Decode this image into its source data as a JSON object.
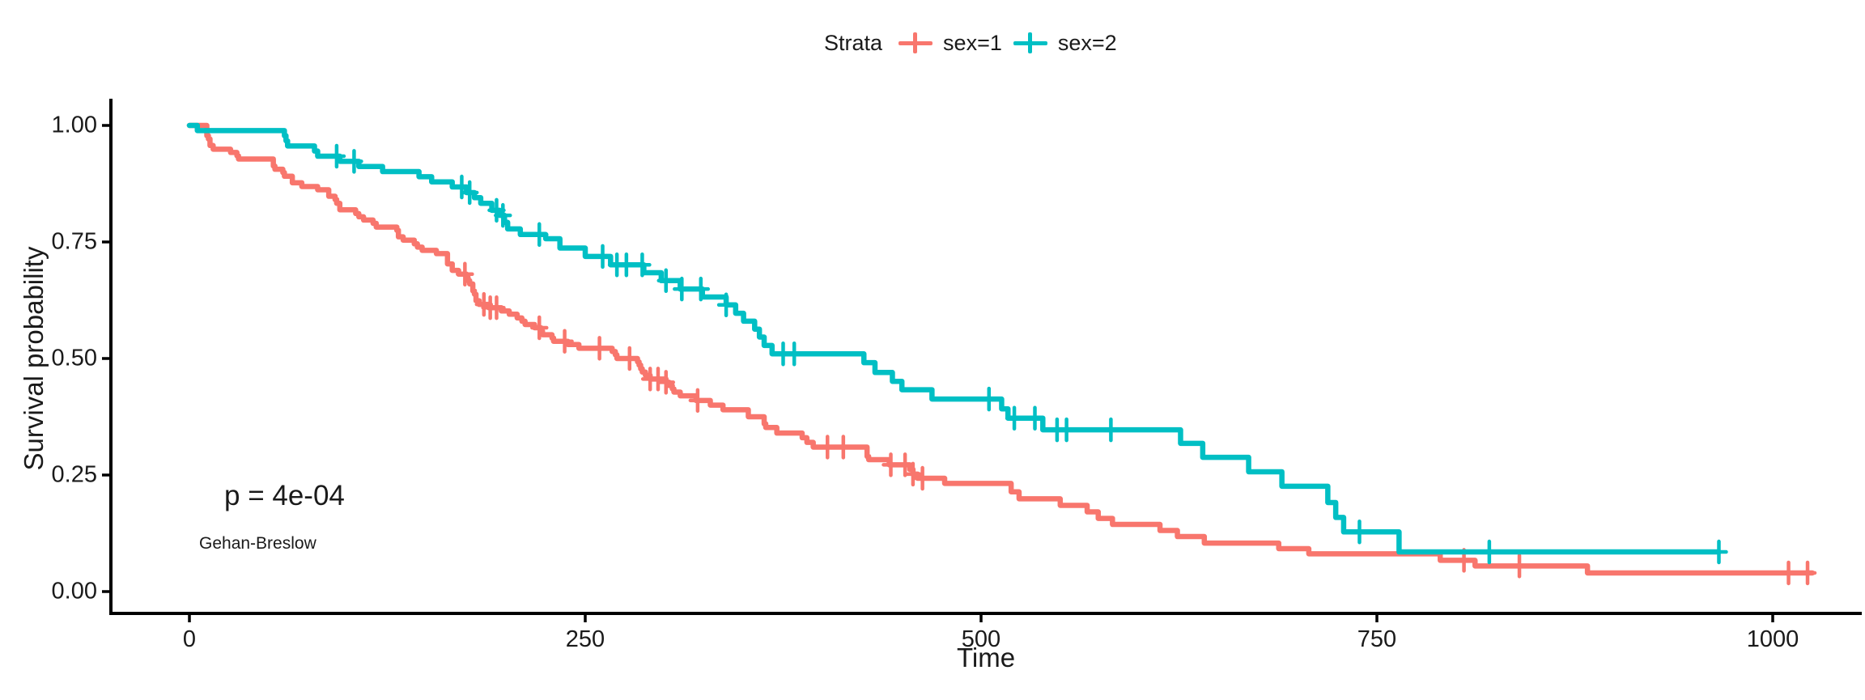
{
  "figure": {
    "background": "#ffffff",
    "text_color": "#1a1a1a",
    "spine_color": "#000000"
  },
  "legend": {
    "title": "Strata",
    "items": [
      {
        "label": "sex=1",
        "color": "#F8766D"
      },
      {
        "label": "sex=2",
        "color": "#00BFC4"
      }
    ]
  },
  "annotations": {
    "p_value": "p = 4e-04",
    "test_name": "Gehan-Breslow"
  },
  "axes": {
    "x": {
      "label": "Time",
      "ticks": [
        0,
        250,
        500,
        750,
        1000
      ],
      "tick_labels": [
        "0",
        "250",
        "500",
        "750",
        "1000"
      ],
      "range": [
        0,
        1000
      ]
    },
    "y": {
      "label": "Survival probability",
      "ticks": [
        0,
        0.25,
        0.5,
        0.75,
        1
      ],
      "tick_labels": [
        "0.00",
        "0.25",
        "0.50",
        "0.75",
        "1.00"
      ],
      "range": [
        0,
        1
      ]
    }
  },
  "chart_data": {
    "type": "line",
    "subtype": "kaplan-meier-step",
    "title": "",
    "xlabel": "Time",
    "ylabel": "Survival probability",
    "xlim": [
      0,
      1050
    ],
    "ylim": [
      0,
      1
    ],
    "grid": false,
    "legend_position": "top",
    "legend_title": "Strata",
    "series": [
      {
        "name": "sex=1",
        "color": "#F8766D",
        "end_time": 1025,
        "points": [
          [
            0,
            1.0
          ],
          [
            11,
            0.978
          ],
          [
            12,
            0.971
          ],
          [
            13,
            0.957
          ],
          [
            15,
            0.949
          ],
          [
            26,
            0.942
          ],
          [
            30,
            0.935
          ],
          [
            31,
            0.928
          ],
          [
            53,
            0.913
          ],
          [
            54,
            0.906
          ],
          [
            59,
            0.899
          ],
          [
            60,
            0.891
          ],
          [
            65,
            0.877
          ],
          [
            71,
            0.869
          ],
          [
            81,
            0.862
          ],
          [
            88,
            0.848
          ],
          [
            92,
            0.841
          ],
          [
            93,
            0.833
          ],
          [
            95,
            0.819
          ],
          [
            105,
            0.811
          ],
          [
            107,
            0.804
          ],
          [
            110,
            0.797
          ],
          [
            116,
            0.79
          ],
          [
            118,
            0.782
          ],
          [
            131,
            0.775
          ],
          [
            132,
            0.761
          ],
          [
            135,
            0.754
          ],
          [
            142,
            0.746
          ],
          [
            144,
            0.739
          ],
          [
            147,
            0.732
          ],
          [
            156,
            0.725
          ],
          [
            163,
            0.703
          ],
          [
            166,
            0.689
          ],
          [
            170,
            0.681
          ],
          [
            175,
            0.674
          ],
          [
            176,
            0.667
          ],
          [
            177,
            0.66
          ],
          [
            179,
            0.645
          ],
          [
            180,
            0.638
          ],
          [
            181,
            0.624
          ],
          [
            183,
            0.616
          ],
          [
            189,
            0.609
          ],
          [
            197,
            0.602
          ],
          [
            202,
            0.595
          ],
          [
            207,
            0.587
          ],
          [
            210,
            0.58
          ],
          [
            212,
            0.573
          ],
          [
            218,
            0.566
          ],
          [
            222,
            0.559
          ],
          [
            223,
            0.551
          ],
          [
            229,
            0.544
          ],
          [
            230,
            0.537
          ],
          [
            239,
            0.53
          ],
          [
            246,
            0.522
          ],
          [
            267,
            0.515
          ],
          [
            269,
            0.508
          ],
          [
            270,
            0.5
          ],
          [
            283,
            0.493
          ],
          [
            284,
            0.486
          ],
          [
            285,
            0.478
          ],
          [
            286,
            0.471
          ],
          [
            288,
            0.464
          ],
          [
            291,
            0.456
          ],
          [
            301,
            0.449
          ],
          [
            303,
            0.442
          ],
          [
            305,
            0.435
          ],
          [
            306,
            0.428
          ],
          [
            310,
            0.42
          ],
          [
            320,
            0.41
          ],
          [
            329,
            0.4
          ],
          [
            337,
            0.39
          ],
          [
            353,
            0.375
          ],
          [
            363,
            0.36
          ],
          [
            364,
            0.352
          ],
          [
            371,
            0.34
          ],
          [
            387,
            0.33
          ],
          [
            390,
            0.32
          ],
          [
            394,
            0.31
          ],
          [
            428,
            0.29
          ],
          [
            429,
            0.283
          ],
          [
            442,
            0.272
          ],
          [
            455,
            0.262
          ],
          [
            457,
            0.252
          ],
          [
            460,
            0.243
          ],
          [
            477,
            0.232
          ],
          [
            519,
            0.214
          ],
          [
            524,
            0.199
          ],
          [
            550,
            0.185
          ],
          [
            567,
            0.171
          ],
          [
            574,
            0.157
          ],
          [
            583,
            0.144
          ],
          [
            613,
            0.131
          ],
          [
            624,
            0.118
          ],
          [
            641,
            0.104
          ],
          [
            688,
            0.092
          ],
          [
            707,
            0.081
          ],
          [
            790,
            0.067
          ],
          [
            812,
            0.055
          ],
          [
            883,
            0.04
          ]
        ],
        "censor_times": [
          174,
          186,
          190,
          194,
          221,
          237,
          259,
          278,
          291,
          296,
          301,
          321,
          403,
          413,
          443,
          452,
          457,
          463,
          805,
          840,
          1010,
          1022
        ]
      },
      {
        "name": "sex=2",
        "color": "#00BFC4",
        "end_time": 966,
        "points": [
          [
            0,
            1.0
          ],
          [
            5,
            0.989
          ],
          [
            60,
            0.978
          ],
          [
            61,
            0.967
          ],
          [
            62,
            0.956
          ],
          [
            79,
            0.945
          ],
          [
            81,
            0.934
          ],
          [
            95,
            0.923
          ],
          [
            107,
            0.912
          ],
          [
            122,
            0.901
          ],
          [
            145,
            0.89
          ],
          [
            153,
            0.879
          ],
          [
            166,
            0.868
          ],
          [
            175,
            0.856
          ],
          [
            180,
            0.845
          ],
          [
            184,
            0.833
          ],
          [
            191,
            0.818
          ],
          [
            196,
            0.807
          ],
          [
            199,
            0.792
          ],
          [
            201,
            0.778
          ],
          [
            209,
            0.766
          ],
          [
            225,
            0.757
          ],
          [
            234,
            0.737
          ],
          [
            250,
            0.719
          ],
          [
            266,
            0.701
          ],
          [
            287,
            0.684
          ],
          [
            298,
            0.667
          ],
          [
            310,
            0.649
          ],
          [
            324,
            0.632
          ],
          [
            339,
            0.615
          ],
          [
            345,
            0.597
          ],
          [
            350,
            0.58
          ],
          [
            357,
            0.563
          ],
          [
            360,
            0.546
          ],
          [
            363,
            0.528
          ],
          [
            368,
            0.51
          ],
          [
            426,
            0.491
          ],
          [
            433,
            0.47
          ],
          [
            444,
            0.451
          ],
          [
            450,
            0.433
          ],
          [
            469,
            0.413
          ],
          [
            513,
            0.392
          ],
          [
            517,
            0.372
          ],
          [
            539,
            0.347
          ],
          [
            626,
            0.318
          ],
          [
            640,
            0.288
          ],
          [
            669,
            0.257
          ],
          [
            690,
            0.226
          ],
          [
            719,
            0.191
          ],
          [
            724,
            0.159
          ],
          [
            729,
            0.128
          ],
          [
            764,
            0.085
          ]
        ],
        "censor_times": [
          93,
          104,
          172,
          177,
          194,
          198,
          221,
          261,
          270,
          276,
          286,
          301,
          311,
          323,
          339,
          375,
          382,
          505,
          521,
          534,
          548,
          554,
          582,
          739,
          821,
          966
        ]
      }
    ]
  }
}
